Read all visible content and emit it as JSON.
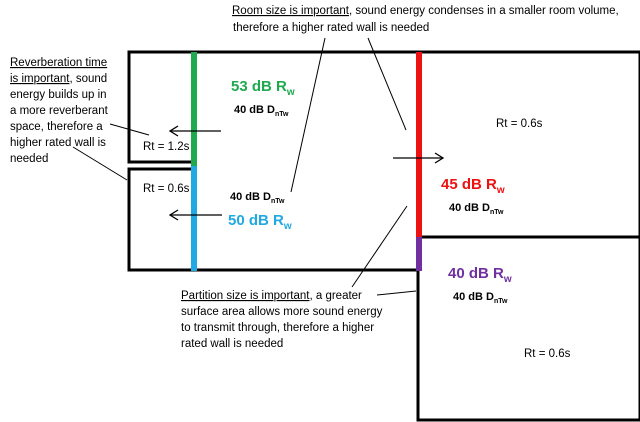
{
  "colors": {
    "green": "#1faa4f",
    "blue": "#21a9e1",
    "red": "#ee1111",
    "purple": "#7030a0",
    "outline": "#000000"
  },
  "annotations": {
    "room_size": {
      "emph": "Room size is important",
      "line1_rest": ", sound energy condenses in a smaller room volume,",
      "line2": "therefore a higher rated wall is needed"
    },
    "reverberation": {
      "line1": "Reverberation time",
      "line2_emph": "is important",
      "line2_rest": ", sound",
      "line3": "energy builds up in",
      "line4": "a more reverberant",
      "line5": "space, therefore a",
      "line6": "higher rated wall is",
      "line7": "needed"
    },
    "partition": {
      "emph": "Partition size is important",
      "line1_rest": ", a greater",
      "line2": "surface area allows more sound energy",
      "line3": "to transmit through, therefore a higher",
      "line4": "rated wall is needed"
    }
  },
  "rooms": {
    "small_top": {
      "rt": "Rt = 1.2s"
    },
    "small_bottom": {
      "rt": "Rt = 0.6s"
    },
    "right_top": {
      "rt": "Rt = 0.6s"
    },
    "right_bottom": {
      "rt": "Rt = 0.6s"
    }
  },
  "walls": {
    "green": {
      "rating": "53 dB R",
      "rating_sub": "w",
      "dntw": "40 dB D",
      "dntw_sub": "nTw"
    },
    "blue": {
      "rating": "50 dB R",
      "rating_sub": "w",
      "dntw": "40 dB D",
      "dntw_sub": "nTw"
    },
    "red": {
      "rating": "45 dB R",
      "rating_sub": "w",
      "dntw": "40 dB D",
      "dntw_sub": "nTw"
    },
    "purple": {
      "rating": "40 dB R",
      "rating_sub": "w",
      "dntw": "40 dB D",
      "dntw_sub": "nTw"
    }
  }
}
